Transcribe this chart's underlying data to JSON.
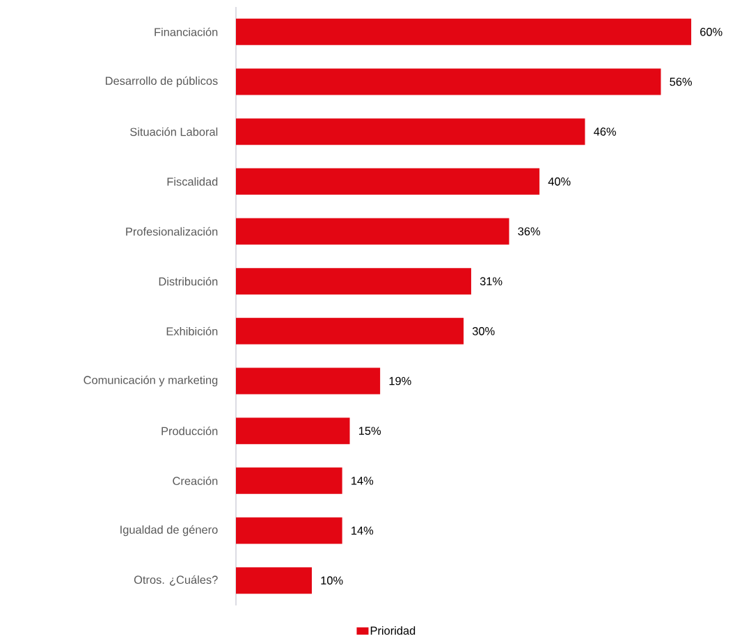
{
  "chart_data": {
    "type": "bar",
    "orientation": "horizontal",
    "categories": [
      "Financiación",
      "Desarrollo de públicos",
      "Situación Laboral",
      "Fiscalidad",
      "Profesionalización",
      "Distribución",
      "Exhibición",
      "Comunicación y marketing",
      "Producción",
      "Creación",
      "Igualdad de género",
      "Otros. ¿Cuáles?"
    ],
    "series": [
      {
        "name": "Prioridad",
        "color": "#e30613",
        "values": [
          60,
          56,
          46,
          40,
          36,
          31,
          30,
          19,
          15,
          14,
          14,
          10
        ],
        "value_labels": [
          "60%",
          "56%",
          "46%",
          "40%",
          "36%",
          "31%",
          "30%",
          "19%",
          "15%",
          "14%",
          "14%",
          "10%"
        ]
      }
    ],
    "legend": "bottom"
  }
}
